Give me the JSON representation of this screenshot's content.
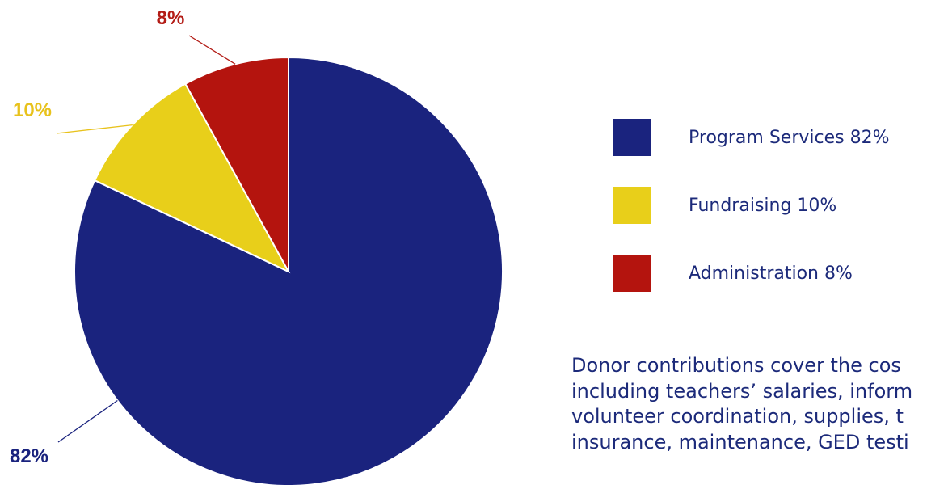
{
  "chart_data": {
    "type": "pie",
    "slices": [
      {
        "name": "Program Services",
        "value": 82,
        "label": "82%",
        "color": "#1a237e",
        "label_color": "#1a237e",
        "legend": "Program Services 82%"
      },
      {
        "name": "Fundraising",
        "value": 10,
        "label": "10%",
        "color": "#e8cf1a",
        "label_color": "#e8c21c",
        "legend": "Fundraising 10%"
      },
      {
        "name": "Administration",
        "value": 8,
        "label": "8%",
        "color": "#b4140e",
        "label_color": "#b31c16",
        "legend": "Administration 8%"
      }
    ],
    "start_angle_deg": 0,
    "direction": "clockwise",
    "legend_position": "right"
  },
  "description": "Donor contributions cover the cos\nincluding teachers’ salaries, inform\nvolunteer coordination, supplies, t\ninsurance, maintenance, GED testi"
}
